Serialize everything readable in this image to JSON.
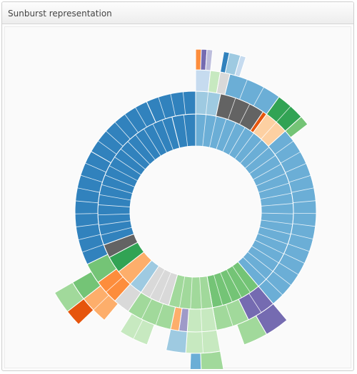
{
  "panel": {
    "title": "Sunburst representation"
  },
  "chart_data": {
    "type": "sunburst",
    "stroke_color": "#ffffff",
    "palette": {
      "blue": "#3182bd",
      "blue_mid": "#6baed6",
      "blue_light": "#9ecae1",
      "blue_pale": "#c6dbef",
      "orange": "#e6550d",
      "orange_mid": "#fd8d3c",
      "orange_light": "#fdae6b",
      "orange_pale": "#fdd0a2",
      "green": "#31a354",
      "green_mid": "#74c476",
      "green_light": "#a1d99b",
      "green_pale": "#c7e9c0",
      "purple": "#756bb1",
      "purple_mid": "#9e9ac8",
      "purple_light": "#bcbddc",
      "grey_dark": "#636363",
      "grey": "#969696",
      "grey_light": "#bdbdbd",
      "grey_pale": "#d9d9d9"
    },
    "rings": [
      {
        "level": 1,
        "segments": [
          {
            "start": 0,
            "end": 140,
            "color": "#6baed6"
          },
          {
            "start": 140,
            "end": 170,
            "color": "#74c476"
          },
          {
            "start": 170,
            "end": 196,
            "color": "#a1d99b"
          },
          {
            "start": 196,
            "end": 214,
            "color": "#d9d9d9"
          },
          {
            "start": 214,
            "end": 222,
            "color": "#9ecae1"
          },
          {
            "start": 222,
            "end": 232,
            "color": "#fdae6b"
          },
          {
            "start": 232,
            "end": 242,
            "color": "#31a354"
          },
          {
            "start": 242,
            "end": 250,
            "color": "#636363"
          },
          {
            "start": 250,
            "end": 346,
            "color": "#3182bd"
          },
          {
            "start": 346,
            "end": 360,
            "color": "#3182bd"
          }
        ]
      },
      {
        "level": 2,
        "segments": [
          {
            "start": 0,
            "end": 12,
            "color": "#9ecae1"
          },
          {
            "start": 12,
            "end": 34,
            "color": "#636363"
          },
          {
            "start": 34,
            "end": 36,
            "color": "#e6550d"
          },
          {
            "start": 36,
            "end": 48,
            "color": "#fdd0a2"
          },
          {
            "start": 48,
            "end": 140,
            "color": "#6baed6"
          },
          {
            "start": 140,
            "end": 154,
            "color": "#756bb1"
          },
          {
            "start": 154,
            "end": 170,
            "color": "#a1d99b"
          },
          {
            "start": 170,
            "end": 184,
            "color": "#c7e9c0"
          },
          {
            "start": 184,
            "end": 188,
            "color": "#9e9ac8"
          },
          {
            "start": 188,
            "end": 192,
            "color": "#fdae6b"
          },
          {
            "start": 192,
            "end": 214,
            "color": "#a1d99b"
          },
          {
            "start": 214,
            "end": 222,
            "color": "#d9d9d9"
          },
          {
            "start": 222,
            "end": 234,
            "color": "#fd8d3c"
          },
          {
            "start": 234,
            "end": 244,
            "color": "#74c476"
          },
          {
            "start": 244,
            "end": 300,
            "color": "#3182bd"
          },
          {
            "start": 300,
            "end": 336,
            "color": "#3182bd"
          },
          {
            "start": 336,
            "end": 360,
            "color": "#3182bd"
          }
        ]
      },
      {
        "level": 3,
        "segments": [
          {
            "start": 0,
            "end": 6,
            "color": "#c6dbef"
          },
          {
            "start": 6,
            "end": 10,
            "color": "#c7e9c0"
          },
          {
            "start": 10,
            "end": 14,
            "color": "#d9d9d9"
          },
          {
            "start": 14,
            "end": 36,
            "color": "#6baed6"
          },
          {
            "start": 36,
            "end": 48,
            "color": "#31a354"
          },
          {
            "start": 48,
            "end": 52,
            "color": "#74c476"
          },
          {
            "start": 140,
            "end": 150,
            "color": "#756bb1"
          },
          {
            "start": 150,
            "end": 160,
            "color": "#a1d99b"
          },
          {
            "start": 170,
            "end": 184,
            "color": "#c7e9c0"
          },
          {
            "start": 184,
            "end": 192,
            "color": "#9ecae1"
          },
          {
            "start": 200,
            "end": 212,
            "color": "#c7e9c0"
          },
          {
            "start": 220,
            "end": 232,
            "color": "#fdae6b"
          },
          {
            "start": 232,
            "end": 240,
            "color": "#74c476"
          }
        ]
      },
      {
        "level": 4,
        "segments": [
          {
            "start": 0,
            "end": 2,
            "color": "#fd8d3c"
          },
          {
            "start": 2,
            "end": 4,
            "color": "#756bb1"
          },
          {
            "start": 4,
            "end": 6,
            "color": "#bcbddc"
          },
          {
            "start": 10,
            "end": 12,
            "color": "#3182bd"
          },
          {
            "start": 12,
            "end": 16,
            "color": "#9ecae1"
          },
          {
            "start": 16,
            "end": 18,
            "color": "#c6dbef"
          },
          {
            "start": 170,
            "end": 178,
            "color": "#a1d99b"
          },
          {
            "start": 178,
            "end": 182,
            "color": "#6baed6"
          },
          {
            "start": 226,
            "end": 232,
            "color": "#e6550d"
          },
          {
            "start": 232,
            "end": 240,
            "color": "#a1d99b"
          }
        ]
      }
    ]
  }
}
